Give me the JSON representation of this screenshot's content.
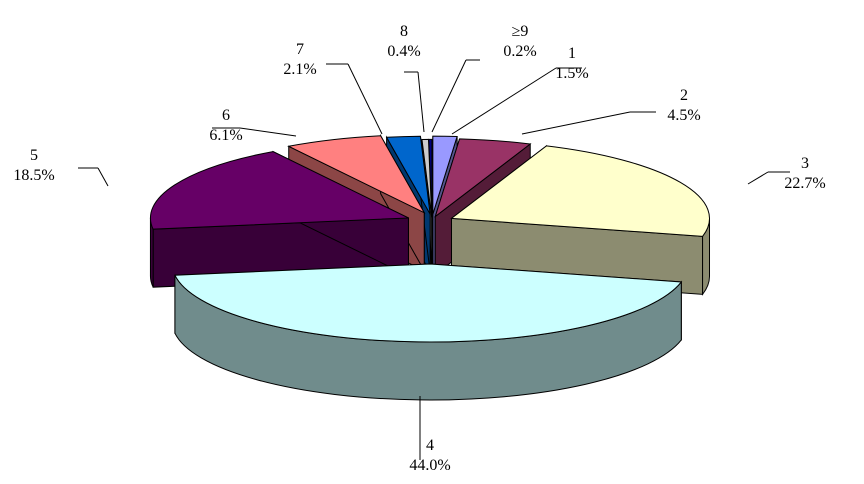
{
  "chart_data": {
    "type": "pie",
    "title": "",
    "exploded": true,
    "style": "3d",
    "legend": "none",
    "slices": [
      {
        "label": "1",
        "value": 1.5,
        "value_label": "1.5%",
        "color": "#9999ff",
        "side_color": "#54548c"
      },
      {
        "label": "2",
        "value": 4.5,
        "value_label": "4.5%",
        "color": "#993366",
        "side_color": "#541c38"
      },
      {
        "label": "3",
        "value": 22.7,
        "value_label": "22.7%",
        "color": "#ffffcc",
        "side_color": "#8c8c70"
      },
      {
        "label": "4",
        "value": 44.0,
        "value_label": "44.0%",
        "color": "#ccffff",
        "side_color": "#708c8c"
      },
      {
        "label": "5",
        "value": 18.5,
        "value_label": "18.5%",
        "color": "#660066",
        "side_color": "#380038"
      },
      {
        "label": "6",
        "value": 6.1,
        "value_label": "6.1%",
        "color": "#ff8080",
        "side_color": "#8c4646"
      },
      {
        "label": "7",
        "value": 2.1,
        "value_label": "2.1%",
        "color": "#0066cc",
        "side_color": "#003870"
      },
      {
        "label": "8",
        "value": 0.4,
        "value_label": "0.4%",
        "color": "#cccccc",
        "side_color": "#707070"
      },
      {
        "label": "≥9",
        "value": 0.2,
        "value_label": "0.2%",
        "color": "#000080",
        "side_color": "#000046"
      }
    ]
  }
}
